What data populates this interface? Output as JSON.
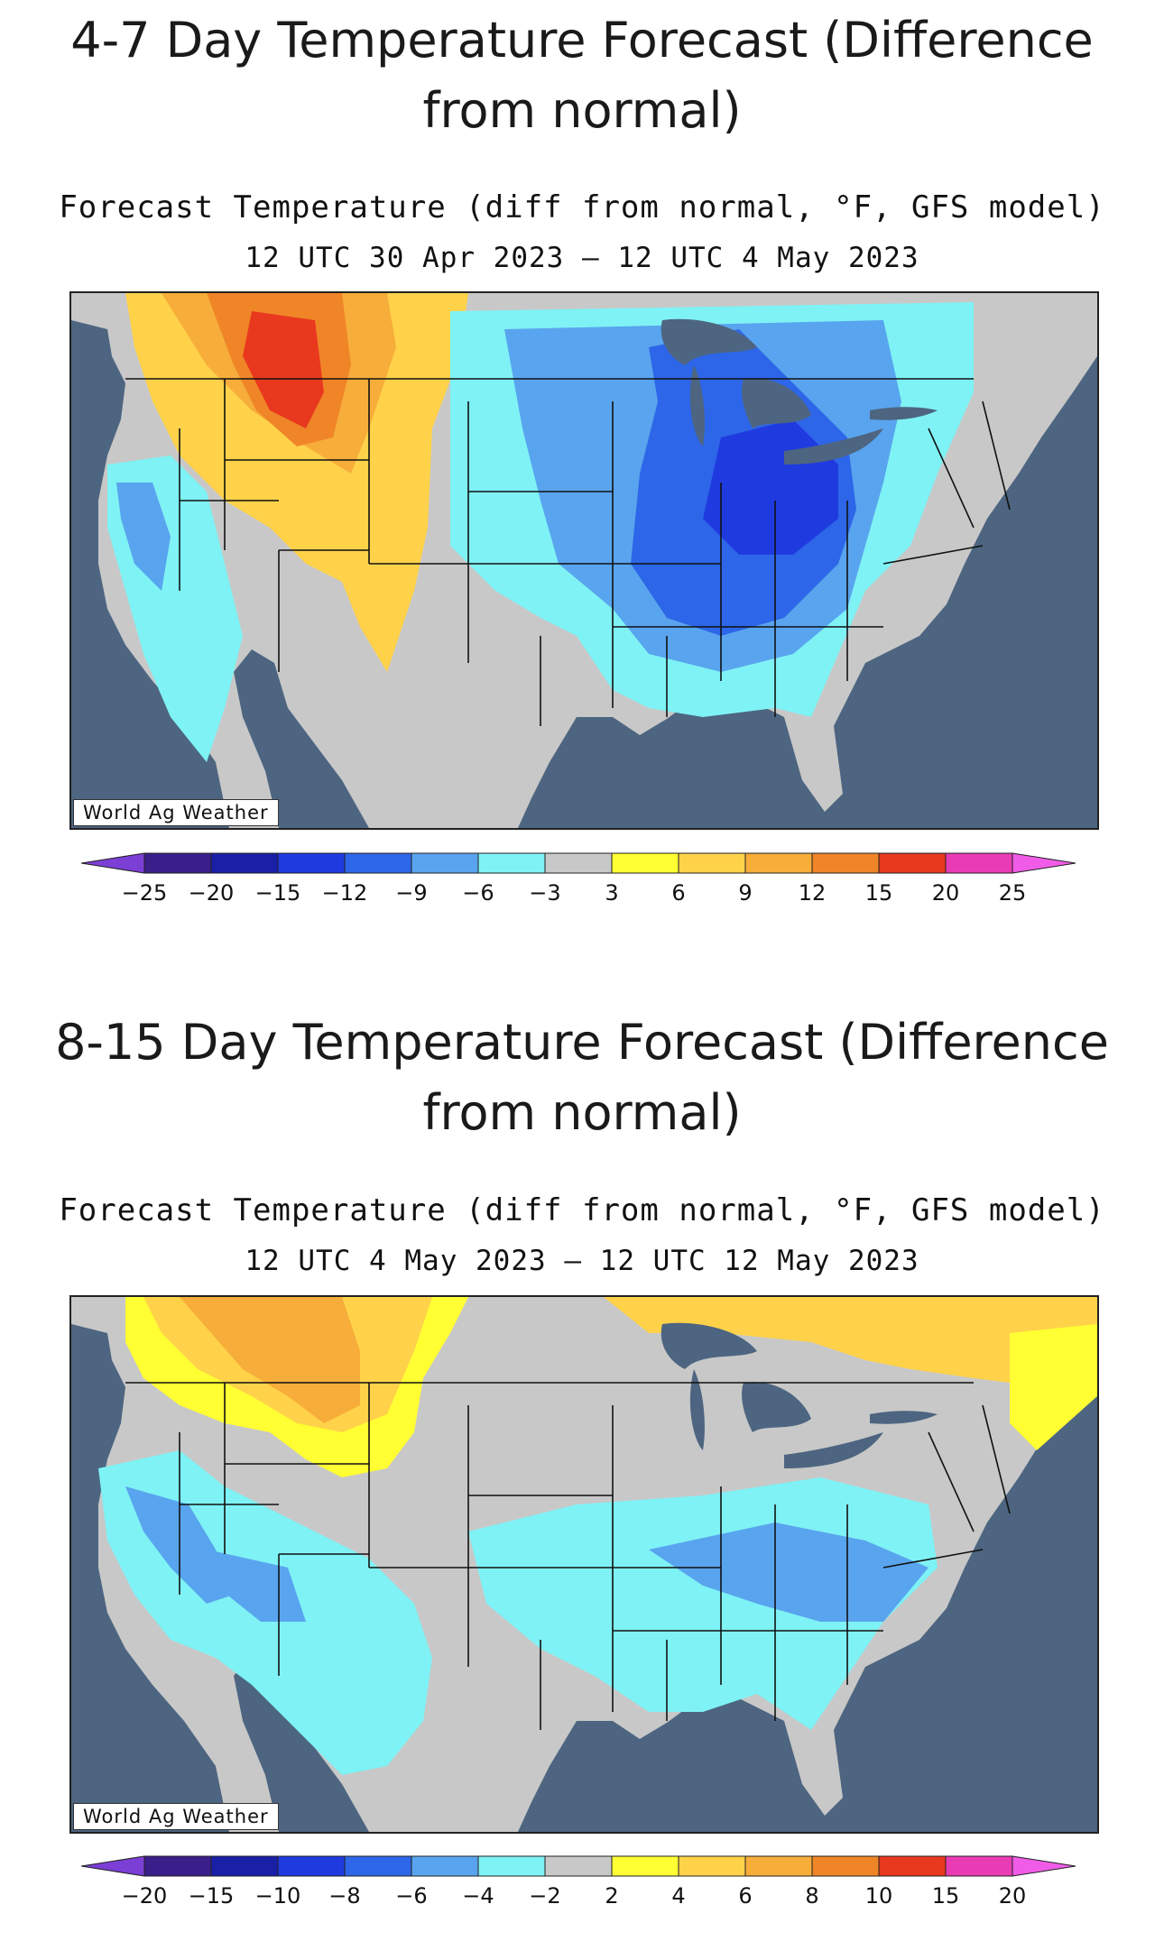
{
  "panels": [
    {
      "heading": "4-7 Day Temperature Forecast (Difference from normal)",
      "title": "Forecast Temperature (diff from normal, °F, GFS model)",
      "period": "12 UTC 30 Apr 2023 – 12 UTC 4 May 2023",
      "watermark": "World Ag Weather",
      "scale_labels": [
        "-25",
        "-20",
        "-15",
        "-12",
        "-9",
        "-6",
        "-3",
        "3",
        "6",
        "9",
        "12",
        "15",
        "20",
        "25"
      ],
      "scale_colors": [
        "#3a1f8a",
        "#1a1fa8",
        "#1f3be0",
        "#2d66e8",
        "#59a4ee",
        "#7ff2f5",
        "#c8c8c8",
        "#ffff33",
        "#ffd24a",
        "#f7ad3a",
        "#f08528",
        "#e8391e",
        "#e83cb4"
      ],
      "regions": [
        {
          "color": "#c8c8c8",
          "label": "near normal"
        },
        {
          "color": "#ffd24a",
          "label": "warm"
        },
        {
          "color": "#f08528",
          "label": "very warm"
        },
        {
          "color": "#e8391e",
          "label": "hot"
        },
        {
          "color": "#7ff2f5",
          "label": "cool"
        },
        {
          "color": "#59a4ee",
          "label": "cold"
        },
        {
          "color": "#1f3be0",
          "label": "very cold"
        }
      ]
    },
    {
      "heading": "8-15 Day Temperature Forecast (Difference from normal)",
      "title": "Forecast Temperature (diff from normal, °F, GFS model)",
      "period": "12 UTC 4 May 2023 – 12 UTC 12 May 2023",
      "watermark": "World Ag Weather",
      "scale_labels": [
        "-20",
        "-15",
        "-10",
        "-8",
        "-6",
        "-4",
        "-2",
        "2",
        "4",
        "6",
        "8",
        "10",
        "15",
        "20"
      ],
      "scale_colors": [
        "#3a1f8a",
        "#1a1fa8",
        "#1f3be0",
        "#2d66e8",
        "#59a4ee",
        "#7ff2f5",
        "#c8c8c8",
        "#ffff33",
        "#ffd24a",
        "#f7ad3a",
        "#f08528",
        "#e8391e",
        "#e83cb4"
      ],
      "regions": [
        {
          "color": "#c8c8c8",
          "label": "near normal"
        },
        {
          "color": "#ffff33",
          "label": "slightly warm"
        },
        {
          "color": "#f7ad3a",
          "label": "warm"
        },
        {
          "color": "#7ff2f5",
          "label": "cool"
        },
        {
          "color": "#59a4ee",
          "label": "cold"
        }
      ]
    }
  ],
  "colors": {
    "ocean": "#4d6580",
    "lakes": "#4d6580",
    "border": "#111111"
  }
}
